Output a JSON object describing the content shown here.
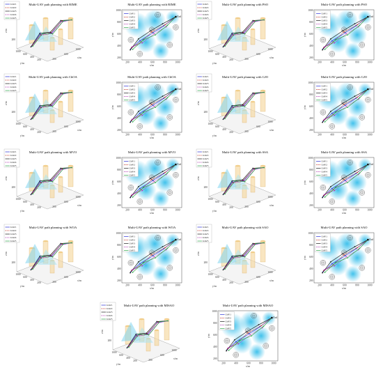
{
  "uav_labels": [
    "UAV1",
    "UAV2",
    "UAV3",
    "UAV4",
    "UAV5"
  ],
  "uav_colors": [
    "#2a2fd4",
    "#c0392b",
    "#1b1b1b",
    "#b23bb2",
    "#2ea84a"
  ],
  "panels": [
    {
      "title": "Multi-UAV path planning with RIME",
      "view": "3d",
      "legend": [
        "UAV1",
        "UAV2",
        "UAV3",
        "UAV4",
        "UAV5"
      ]
    },
    {
      "title": "Multi-UAV path planning with RIME",
      "view": "2d",
      "legend": [
        "UAV1",
        "UAV2",
        "UAV3",
        "UAV4",
        "UAV5"
      ]
    },
    {
      "title": "Multi-UAV path planning with PSO",
      "view": "3d",
      "legend": [
        "UAV1",
        "UAV2",
        "UAV3",
        "UAV4",
        "UAV5"
      ]
    },
    {
      "title": "Multi-UAV path planning with PSO",
      "view": "2d",
      "legend": [
        "UAV1",
        "UAV2",
        "UAV3",
        "UAV4",
        "UAV5"
      ]
    },
    {
      "title": "Multi-UAV path planning with ChOA",
      "view": "3d",
      "legend": [
        "UAV1",
        "UAV2",
        "UAV3",
        "UAV4",
        "UAV5"
      ]
    },
    {
      "title": "Multi-UAV path planning with ChOA",
      "view": "2d",
      "legend": [
        "UAV1",
        "UAV2",
        "UAV3",
        "UAV4",
        "UAV5"
      ]
    },
    {
      "title": "Multi-UAV path planning with GJO",
      "view": "3d",
      "legend": [
        "UAV1",
        "UAV2",
        "UAV3",
        "UAV4",
        "UAV5"
      ]
    },
    {
      "title": "Multi-UAV path planning with GJO",
      "view": "2d",
      "legend": [
        "UAV1",
        "UAV2",
        "UAV3",
        "UAV4",
        "UAV5"
      ]
    },
    {
      "title": "Multi-UAV path planning with MVO",
      "view": "3d",
      "legend": [
        "UAV1",
        "UAV2",
        "UAV3",
        "UAV4",
        "UAV5"
      ]
    },
    {
      "title": "Multi-UAV path planning with MVO",
      "view": "2d",
      "legend": [
        "UAV1",
        "UAV2",
        "UAV3",
        "UAV4",
        "UAV5"
      ]
    },
    {
      "title": "Multi-UAV path planning with SSA",
      "view": "3d",
      "legend": [
        "UAV1",
        "UAV2",
        "UAV3",
        "UAV4",
        "UAV5"
      ]
    },
    {
      "title": "Multi-UAV path planning with SSA",
      "view": "2d",
      "legend": [
        "UAV1",
        "UAV2",
        "UAV3",
        "UAV4",
        "UAV5"
      ]
    },
    {
      "title": "Multi-UAV path planning with WOA",
      "view": "3d",
      "legend": [
        "UAV1",
        "UAV2",
        "UAV3",
        "UAV4",
        "UAV5"
      ]
    },
    {
      "title": "Multi-UAV path planning with WOA",
      "view": "2d",
      "legend": [
        "UAV1",
        "UAV2",
        "UAV3",
        "UAV4",
        "UAV5"
      ]
    },
    {
      "title": "Multi-UAV path planning with SAO",
      "view": "3d",
      "legend": [
        "UAV1",
        "UAV2",
        "UAV3",
        "UAV4",
        "UAV5"
      ]
    },
    {
      "title": "Multi-UAV path planning with SAO",
      "view": "2d",
      "legend": [
        "UAV1",
        "UAV2",
        "UAV3",
        "UAV4",
        "UAV5"
      ]
    },
    {
      "title": "Multi-UAV path planning with MISAO",
      "view": "3d",
      "legend": [
        "UAV1",
        "UAV2",
        "UAV3",
        "UAV4",
        "UAV5"
      ]
    },
    {
      "title": "Multi-UAV path planning with MISAO",
      "view": "2d",
      "legend": [
        "UAV1",
        "UAV2",
        "UAV3",
        "UAV4",
        "UAV5"
      ]
    }
  ],
  "axes_3d": {
    "zlabel": "z/m",
    "ylabel": "y/m",
    "xlabel": "x/m",
    "z_ticks": [
      "1000",
      "200"
    ],
    "y_ticks": [
      "1000",
      "600",
      "400",
      "200"
    ],
    "x_ticks": [
      "200",
      "600",
      "1000"
    ]
  },
  "axes_2d": {
    "ylabel": "y/m",
    "xlabel": "x/m",
    "y_ticks": [
      "1000",
      "800",
      "600",
      "400",
      "200"
    ],
    "x_ticks": [
      "200",
      "400",
      "600",
      "800",
      "1000"
    ]
  },
  "end_label": "End",
  "chart_data": {
    "type": "scatter",
    "title": "Multi-UAV path planning",
    "series": [
      {
        "name": "UAV1",
        "x": [
          150,
          300,
          520,
          700,
          900
        ],
        "y": [
          220,
          380,
          540,
          680,
          860
        ]
      },
      {
        "name": "UAV2",
        "x": [
          160,
          320,
          500,
          720,
          900
        ],
        "y": [
          240,
          360,
          560,
          700,
          860
        ]
      },
      {
        "name": "UAV3",
        "x": [
          140,
          280,
          480,
          680,
          900
        ],
        "y": [
          200,
          420,
          580,
          720,
          860
        ]
      },
      {
        "name": "UAV4",
        "x": [
          170,
          340,
          540,
          740,
          900
        ],
        "y": [
          260,
          340,
          520,
          660,
          860
        ]
      },
      {
        "name": "UAV5",
        "x": [
          180,
          360,
          560,
          760,
          900
        ],
        "y": [
          210,
          400,
          500,
          690,
          860
        ]
      }
    ],
    "xlabel": "x/m",
    "ylabel": "y/m",
    "xlim": [
      0,
      1000
    ],
    "ylim": [
      0,
      1000
    ]
  }
}
